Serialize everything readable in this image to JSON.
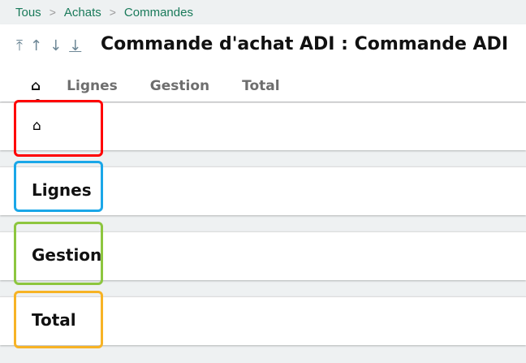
{
  "breadcrumb": [
    "Tous",
    "Achats",
    "Commandes"
  ],
  "nav_arrows": [
    "first-icon",
    "previous-icon",
    "next-icon",
    "last-icon"
  ],
  "title": "Commande d'achat ADI : Commande ADI",
  "tabs": {
    "home": "home-icon",
    "items": [
      "Lignes",
      "Gestion",
      "Total"
    ]
  },
  "sections": [
    "Lignes",
    "Gestion",
    "Total"
  ],
  "highlight_colors": {
    "home": "#ff0000",
    "lignes": "#1aa7e8",
    "gestion": "#8dc63f",
    "total": "#f7b325"
  }
}
